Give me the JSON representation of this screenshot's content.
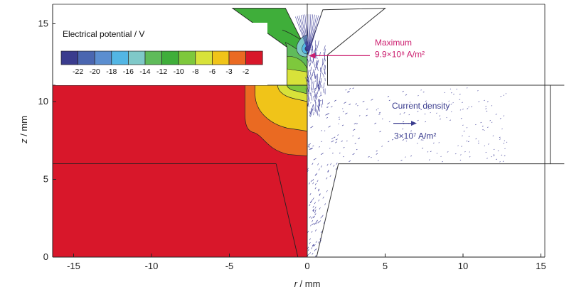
{
  "chart_data": {
    "type": "contour",
    "xlabel": {
      "var": "r",
      "unit": " / mm"
    },
    "ylabel": {
      "var": "z",
      "unit": " / mm"
    },
    "xlim": [
      -16.5,
      16.5
    ],
    "ylim": [
      0,
      16.5
    ],
    "x_ticks": [
      -15,
      -10,
      -5,
      0,
      5,
      10,
      15
    ],
    "x_tick_labels": [
      "-15",
      "-10",
      "-5",
      "0",
      "5",
      "10",
      "15"
    ],
    "y_ticks": [
      0,
      5,
      10,
      15
    ],
    "y_tick_labels": [
      "0",
      "5",
      "10",
      "15"
    ],
    "grid": false,
    "colorbar": {
      "title": "Electrical potential  / V",
      "levels": [
        -22,
        -20,
        -18,
        -16,
        -14,
        -12,
        -10,
        -8,
        -6,
        -3,
        -2
      ],
      "labels": [
        "-22",
        "-20",
        "-18",
        "-16",
        "-14",
        "-12",
        "-10",
        "-8",
        "-6",
        "-3",
        "-2"
      ],
      "colors": [
        "#3a3c8e",
        "#4a66b0",
        "#5b8ed0",
        "#53b6e4",
        "#7fc9c9",
        "#5fbb5a",
        "#3fae3a",
        "#7ec83c",
        "#d8e23a",
        "#f0c419",
        "#ea6a22",
        "#d8172a"
      ]
    },
    "annotations": {
      "maximum": {
        "line1": "Maximum",
        "line2": "9.9×10⁸ A/m²",
        "color": "#cc1f6f"
      },
      "current_density": {
        "line1": "Current density",
        "line2": "3×10⁷ A/m²",
        "color": "#3b3d8f"
      }
    }
  }
}
